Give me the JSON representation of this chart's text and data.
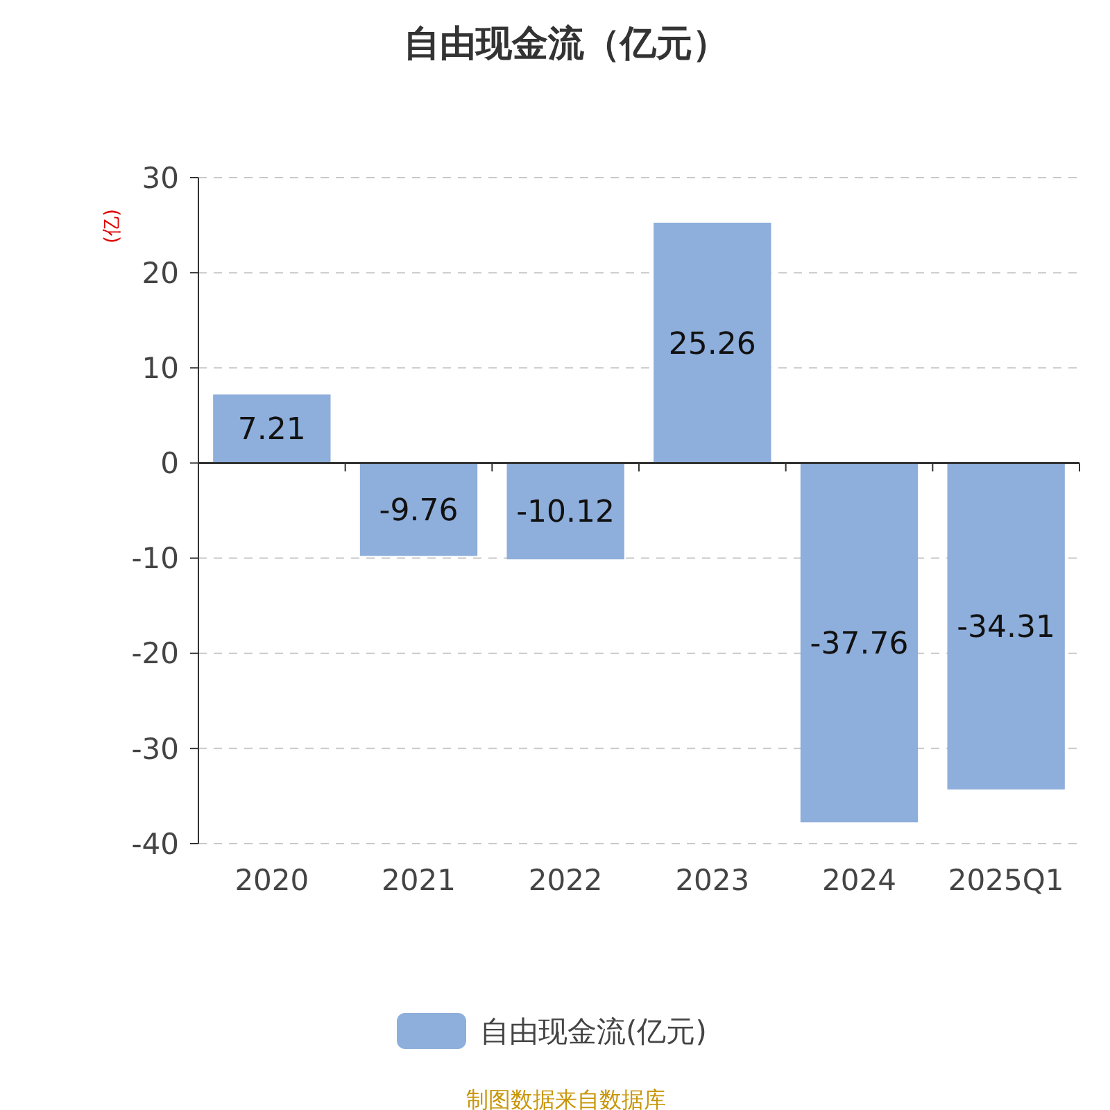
{
  "chart_data": {
    "type": "bar",
    "title": "自由现金流（亿元）",
    "ylabel": "(亿)",
    "categories": [
      "2020",
      "2021",
      "2022",
      "2023",
      "2024",
      "2025Q1"
    ],
    "series": [
      {
        "name": "自由现金流(亿元)",
        "color": "#8eaedb",
        "values": [
          7.21,
          -9.76,
          -10.12,
          25.26,
          -37.76,
          -34.31
        ]
      }
    ],
    "ylim": [
      -40,
      30
    ],
    "yticks": [
      -40,
      -30,
      -20,
      -10,
      0,
      10,
      20,
      30
    ],
    "grid": "y",
    "legend": "bottom",
    "data_labels": true,
    "annotations": [
      "制图数据来自数据库"
    ]
  }
}
